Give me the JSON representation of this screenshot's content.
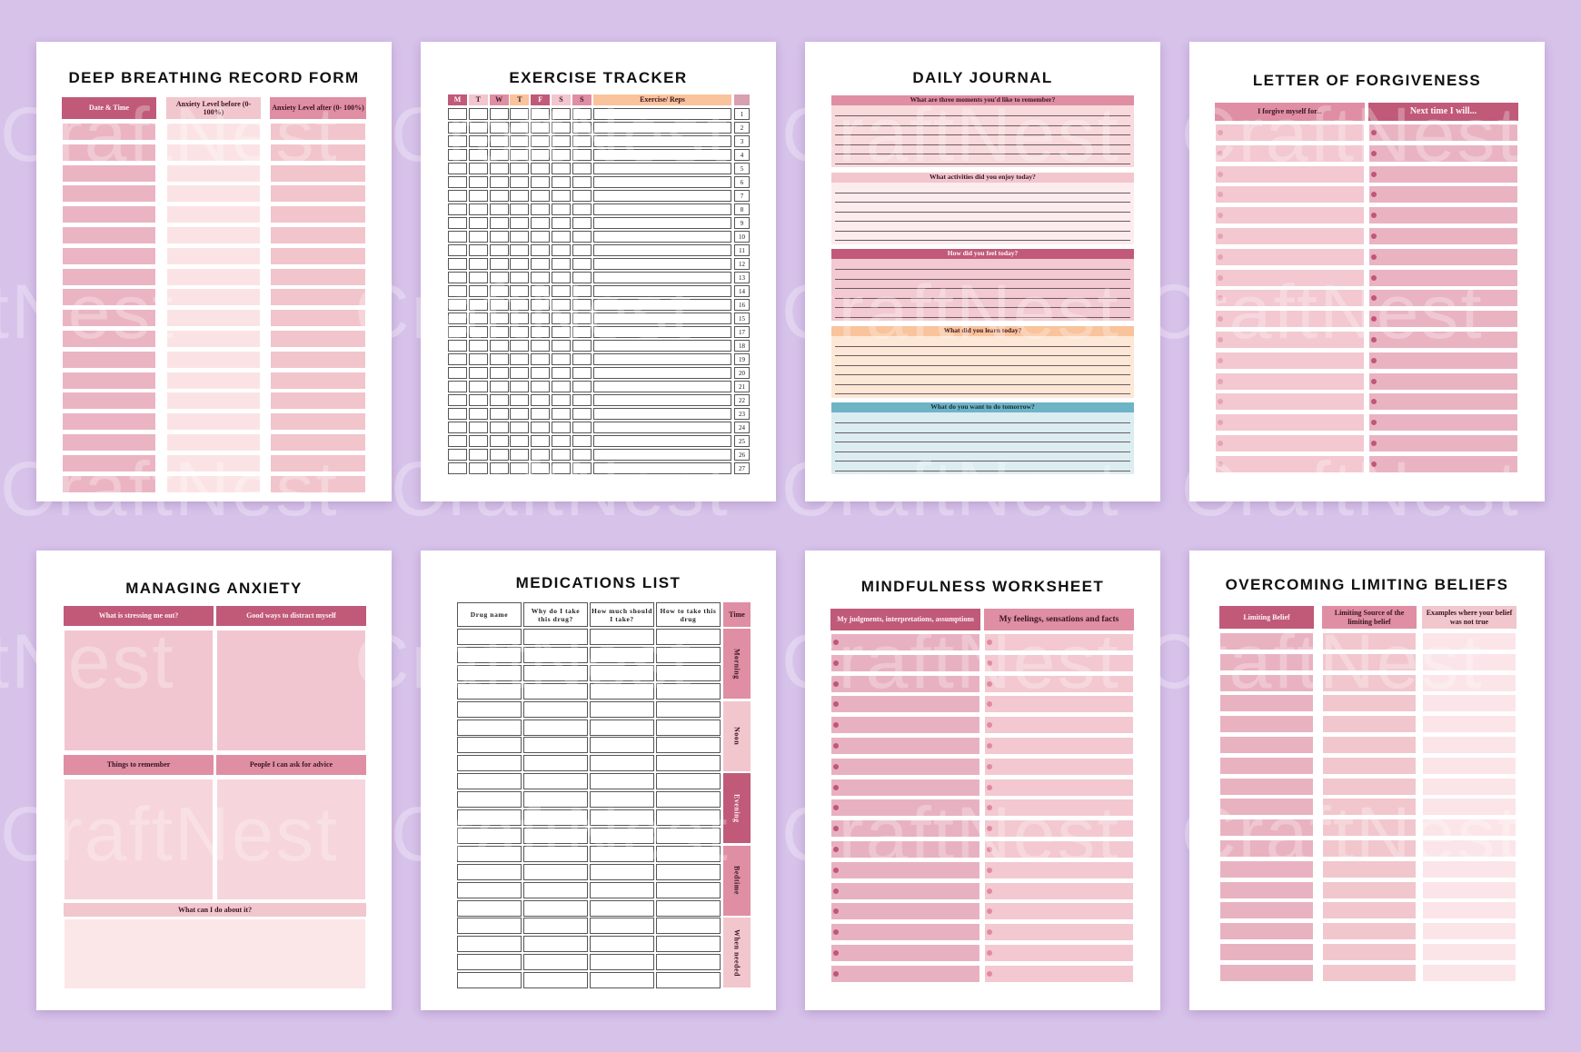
{
  "watermark": "CraftNest",
  "colors": {
    "background": "#d7c2ea",
    "dark_pink": "#c05a78",
    "mid_pink": "#df8ea3",
    "light_pink": "#f2c6cd",
    "peach": "#f9c39b",
    "blue": "#6fb4c6"
  },
  "pages": {
    "deep_breathing": {
      "title": "DEEP BREATHING RECORD FORM",
      "headers": [
        "Date & Time",
        "Anxiety Level before (0- 100%)",
        "Anxiety Level after (0- 100%)"
      ],
      "row_count": 18
    },
    "exercise_tracker": {
      "title": "EXERCISE TRACKER",
      "days": [
        "M",
        "T",
        "W",
        "T",
        "F",
        "S",
        "S"
      ],
      "exercise_header": "Exercise/ Reps",
      "row_numbers": [
        "1",
        "2",
        "3",
        "4",
        "5",
        "6",
        "7",
        "8",
        "9",
        "10",
        "11",
        "12",
        "13",
        "14",
        "16",
        "15",
        "17",
        "18",
        "19",
        "20",
        "21",
        "22",
        "23",
        "24",
        "25",
        "26",
        "27"
      ]
    },
    "daily_journal": {
      "title": "DAILY JOURNAL",
      "prompts": [
        "What are three moments you'd like to remember?",
        "What activities did you enjoy today?",
        "How did you feel today?",
        "What did you learn today?",
        "What do you want to do tomorrow?"
      ]
    },
    "forgiveness": {
      "title": "LETTER OF FORGIVENESS",
      "headers": [
        "I forgive myself for...",
        "Next time I will..."
      ],
      "row_count": 17
    },
    "managing_anxiety": {
      "title": "MANAGING ANXIETY",
      "headers": [
        "What is stressing me out?",
        "Good ways to distract myself",
        "Things to remember",
        "People I can ask for advice",
        "What can I do about it?"
      ]
    },
    "medications": {
      "title": "MEDICATIONS LIST",
      "headers": [
        "Drug name",
        "Why do I take this drug?",
        "How much should I take?",
        "How to take this drug"
      ],
      "time_header": "Time",
      "times": [
        "Morning",
        "Noon",
        "Evening",
        "Bedtime",
        "When needed"
      ],
      "row_count": 20
    },
    "mindfulness": {
      "title": "MINDFULNESS WORKSHEET",
      "headers": [
        "My judgments, interpretations, assumptions",
        "My feelings, sensations and facts"
      ],
      "row_count": 17
    },
    "limiting_beliefs": {
      "title": "OVERCOMING LIMITING BELIEFS",
      "headers": [
        "Limiting Belief",
        "Limiting Source of the limiting belief",
        "Examples where your belief was not true"
      ],
      "row_count": 17
    }
  }
}
